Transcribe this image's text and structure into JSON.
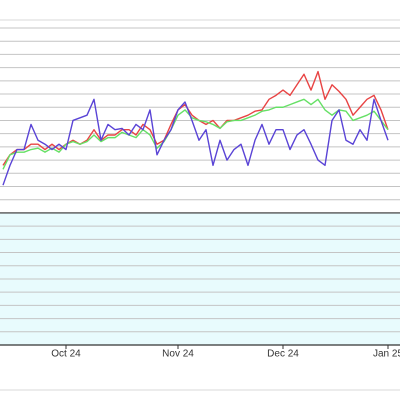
{
  "chart_data": {
    "type": "line",
    "categories": [
      null,
      null,
      null,
      null,
      null,
      null,
      null,
      null,
      null,
      "Oct 24",
      null,
      null,
      null,
      null,
      null,
      null,
      null,
      null,
      null,
      null,
      null,
      null,
      null,
      null,
      null,
      "Nov 24",
      null,
      null,
      null,
      null,
      null,
      null,
      null,
      null,
      null,
      null,
      null,
      null,
      null,
      null,
      "Dec 24",
      null,
      null,
      null,
      null,
      null,
      null,
      null,
      null,
      null,
      null,
      null,
      null,
      null,
      null,
      "Jan 25"
    ],
    "series": [
      {
        "color": "#e84444",
        "values": [
          13.6,
          14.4,
          14.8,
          14.8,
          15.2,
          15.2,
          14.8,
          15.2,
          14.8,
          15.2,
          15.5,
          15.2,
          15.5,
          16.3,
          15.5,
          15.9,
          15.9,
          16.3,
          16.3,
          15.9,
          16.7,
          16.3,
          15.2,
          15.5,
          16.7,
          17.8,
          18.2,
          17.4,
          17.0,
          16.7,
          17.0,
          16.4,
          17.0,
          17.0,
          17.2,
          17.4,
          17.7,
          17.8,
          18.6,
          18.9,
          19.3,
          18.9,
          19.7,
          20.5,
          19.3,
          20.7,
          18.6,
          19.7,
          19.2,
          18.6,
          17.4,
          18.0,
          18.6,
          18.9,
          17.8,
          16.3
        ]
      },
      {
        "color": "#66e066",
        "values": [
          13.3,
          14.4,
          14.6,
          14.6,
          14.8,
          14.9,
          14.6,
          14.9,
          14.6,
          15.2,
          15.4,
          15.2,
          15.4,
          15.9,
          15.4,
          15.7,
          15.7,
          16.1,
          15.9,
          15.7,
          16.3,
          15.9,
          14.9,
          15.4,
          16.3,
          17.4,
          17.8,
          17.2,
          17.0,
          16.9,
          16.7,
          16.4,
          16.9,
          17.0,
          17.0,
          17.2,
          17.4,
          17.7,
          17.8,
          18.0,
          18.0,
          18.2,
          18.4,
          18.6,
          18.2,
          18.6,
          17.8,
          17.4,
          17.8,
          17.7,
          17.0,
          17.2,
          17.4,
          17.7,
          17.0,
          16.3
        ]
      },
      {
        "color": "#5a44d6",
        "values": [
          12.1,
          13.6,
          14.8,
          14.8,
          16.7,
          15.5,
          15.2,
          14.8,
          15.2,
          14.8,
          17.0,
          17.2,
          17.4,
          18.6,
          15.5,
          16.7,
          16.3,
          16.4,
          15.9,
          16.7,
          16.3,
          17.8,
          14.4,
          15.5,
          16.3,
          17.8,
          18.4,
          17.0,
          15.5,
          16.3,
          13.6,
          15.5,
          14.0,
          14.8,
          15.2,
          13.6,
          15.5,
          16.7,
          15.2,
          16.3,
          16.3,
          14.8,
          15.9,
          16.3,
          15.2,
          14.0,
          13.6,
          17.0,
          17.8,
          15.5,
          15.2,
          16.3,
          15.5,
          18.6,
          17.0,
          15.5
        ]
      }
    ],
    "ylim": [
      0,
      24
    ],
    "yticks": [
      0,
      1,
      2,
      3,
      4,
      5,
      6,
      7,
      8,
      9,
      10,
      11,
      12,
      13,
      14,
      15,
      16,
      17,
      18,
      19,
      20,
      21,
      22,
      23,
      24
    ],
    "baseline": 10,
    "grid": true
  }
}
